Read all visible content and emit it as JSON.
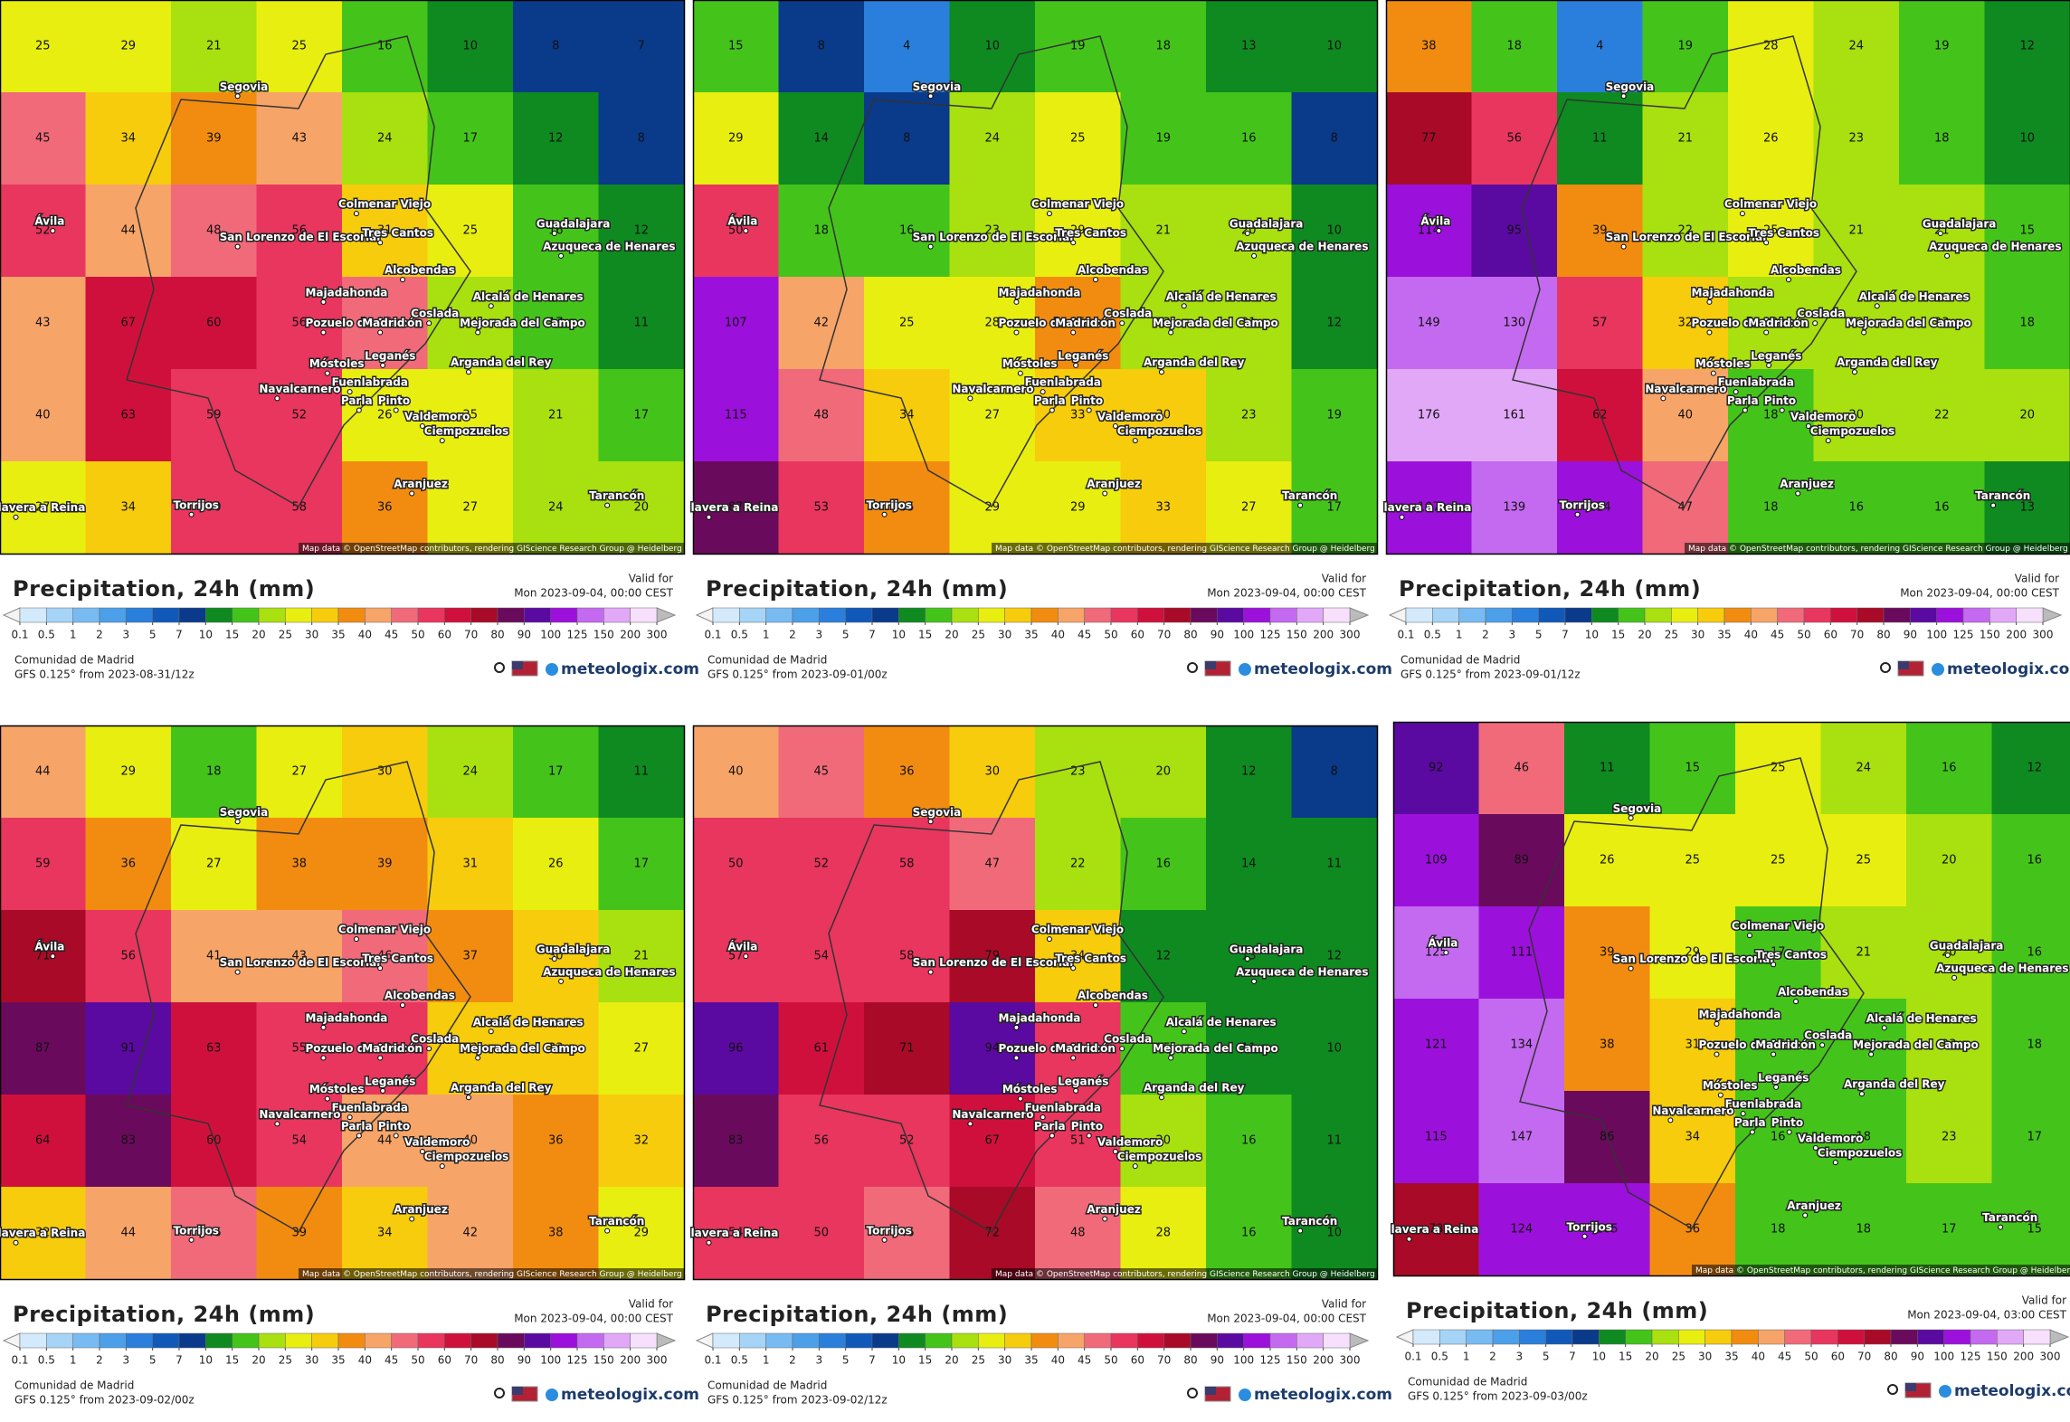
{
  "legend": {
    "ticks": [
      0.1,
      0.5,
      1,
      2,
      3,
      5,
      7,
      10,
      15,
      20,
      25,
      30,
      35,
      40,
      45,
      50,
      60,
      70,
      80,
      90,
      100,
      125,
      150,
      200,
      300
    ],
    "colors": [
      "#d2eafc",
      "#a6d4f7",
      "#78bbf2",
      "#4c9fe9",
      "#2a7fdc",
      "#1159b9",
      "#0a3a8a",
      "#0e8a20",
      "#44c41a",
      "#a8e010",
      "#e8ee10",
      "#f6cc0c",
      "#f28c10",
      "#f7a468",
      "#f06a7a",
      "#e8365e",
      "#d0103c",
      "#a80a28",
      "#6a0a5c",
      "#5a0aa0",
      "#9c10dc",
      "#c46af0",
      "#e2a8f8",
      "#f6e0fc"
    ]
  },
  "places": [
    "Segovia",
    "Ávila",
    "San Lorenzo de El Escorial",
    "Colmenar Viejo",
    "Tres Cantos",
    "Guadalajara",
    "Azuqueca de Henares",
    "Alcobendas",
    "Majadahonda",
    "Pozuelo de Alarcón",
    "Madrid",
    "Coslada",
    "Alcalá de Henares",
    "Mejorada del Campo",
    "Móstoles",
    "Leganés",
    "Arganda del Rey",
    "Navalcarnero",
    "Fuenlabrada",
    "Parla",
    "Pinto",
    "Valdemoro",
    "Ciempozuelos",
    "Aranjuez",
    "Torrijos",
    "Tarancón",
    "lavera a Reina"
  ],
  "attribution": "Map data © OpenStreetMap contributors, rendering GIScience Research Group @ Heidelberg University",
  "panels": [
    {
      "title": "Precipitation, 24h (mm)",
      "valid_label": "Valid for",
      "valid": "Mon 2023-09-04, 00:00 CEST",
      "region": "Comunidad de Madrid",
      "model": "GFS 0.125° from  2023-08-31/12z",
      "brand": "meteologix.com",
      "grid": [
        [
          25,
          29,
          21,
          25,
          16,
          10,
          8,
          7
        ],
        [
          45,
          34,
          39,
          43,
          24,
          17,
          12,
          8
        ],
        [
          52,
          44,
          48,
          56,
          31,
          25,
          16,
          12
        ],
        [
          43,
          67,
          60,
          56,
          46,
          24,
          17,
          11
        ],
        [
          40,
          63,
          59,
          52,
          26,
          25,
          21,
          17
        ],
        [
          27,
          34,
          50,
          58,
          36,
          27,
          24,
          20
        ]
      ]
    },
    {
      "title": "Precipitation, 24h (mm)",
      "valid_label": "Valid for",
      "valid": "Mon 2023-09-04, 00:00 CEST",
      "region": "Comunidad de Madrid",
      "model": "GFS 0.125° from  2023-09-01/00z",
      "brand": "meteologix.com",
      "grid": [
        [
          15,
          8,
          4,
          10,
          19,
          18,
          13,
          10
        ],
        [
          29,
          14,
          8,
          24,
          25,
          19,
          16,
          8
        ],
        [
          50,
          18,
          16,
          23,
          29,
          21,
          20,
          10
        ],
        [
          107,
          42,
          25,
          28,
          35,
          22,
          21,
          12
        ],
        [
          115,
          48,
          34,
          27,
          33,
          30,
          23,
          19
        ],
        [
          87,
          53,
          35,
          29,
          29,
          33,
          27,
          17
        ]
      ]
    },
    {
      "title": "Precipitation, 24h (mm)",
      "valid_label": "Valid for",
      "valid": "Mon 2023-09-04, 00:00 CEST",
      "region": "Comunidad de Madrid",
      "model": "GFS 0.125° from  2023-09-01/12z",
      "brand": "meteologix.com",
      "grid": [
        [
          38,
          18,
          4,
          19,
          28,
          24,
          19,
          12
        ],
        [
          77,
          56,
          11,
          21,
          26,
          23,
          18,
          10
        ],
        [
          114,
          95,
          39,
          22,
          25,
          21,
          21,
          15
        ],
        [
          149,
          130,
          57,
          32,
          20,
          22,
          23,
          18
        ],
        [
          176,
          161,
          62,
          40,
          18,
          20,
          22,
          20
        ],
        [
          107,
          139,
          114,
          47,
          18,
          16,
          16,
          13
        ]
      ]
    },
    {
      "title": "Precipitation, 24h (mm)",
      "valid_label": "Valid for",
      "valid": "Mon 2023-09-04, 00:00 CEST",
      "region": "Comunidad de Madrid",
      "model": "GFS 0.125° from  2023-09-02/00z",
      "brand": "meteologix.com",
      "grid": [
        [
          44,
          29,
          18,
          27,
          30,
          24,
          17,
          11
        ],
        [
          59,
          36,
          27,
          38,
          39,
          31,
          26,
          17
        ],
        [
          71,
          56,
          41,
          43,
          46,
          37,
          30,
          21
        ],
        [
          87,
          91,
          63,
          55,
          59,
          33,
          33,
          27
        ],
        [
          64,
          83,
          60,
          54,
          44,
          40,
          36,
          32
        ],
        [
          32,
          44,
          46,
          39,
          34,
          42,
          38,
          29
        ]
      ]
    },
    {
      "title": "Precipitation, 24h (mm)",
      "valid_label": "Valid for",
      "valid": "Mon 2023-09-04, 00:00 CEST",
      "region": "Comunidad de Madrid",
      "model": "GFS 0.125° from  2023-09-02/12z",
      "brand": "meteologix.com",
      "grid": [
        [
          40,
          45,
          36,
          30,
          23,
          20,
          12,
          8
        ],
        [
          50,
          52,
          58,
          47,
          22,
          16,
          14,
          11
        ],
        [
          57,
          54,
          58,
          79,
          34,
          12,
          13,
          12
        ],
        [
          96,
          61,
          71,
          94,
          51,
          15,
          11,
          10
        ],
        [
          83,
          56,
          52,
          67,
          51,
          20,
          16,
          11
        ],
        [
          54,
          50,
          46,
          72,
          48,
          28,
          16,
          10
        ]
      ]
    },
    {
      "title": "Precipitation, 24h (mm)",
      "valid_label": "Valid for",
      "valid": "Mon 2023-09-04, 03:00 CEST",
      "region": "Comunidad de Madrid",
      "model": "GFS 0.125° from  2023-09-03/00z",
      "brand": "meteologix.com",
      "grid": [
        [
          92,
          46,
          11,
          15,
          25,
          24,
          16,
          12
        ],
        [
          109,
          89,
          26,
          25,
          25,
          25,
          20,
          16
        ],
        [
          125,
          111,
          39,
          29,
          17,
          21,
          20,
          16
        ],
        [
          121,
          134,
          38,
          31,
          16,
          19,
          23,
          18
        ],
        [
          115,
          147,
          86,
          34,
          16,
          18,
          23,
          17
        ],
        [
          73,
          124,
          105,
          36,
          18,
          18,
          17,
          15
        ]
      ]
    }
  ]
}
